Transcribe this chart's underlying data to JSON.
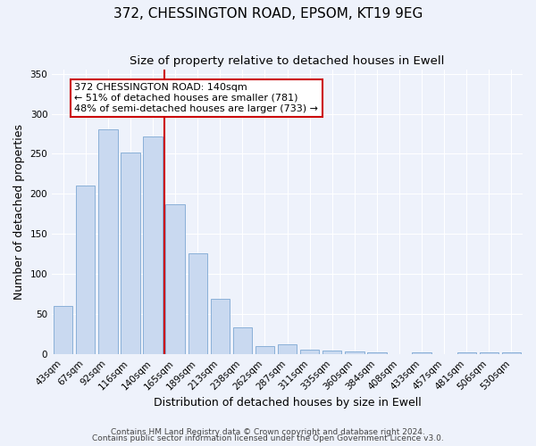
{
  "title": "372, CHESSINGTON ROAD, EPSOM, KT19 9EG",
  "subtitle": "Size of property relative to detached houses in Ewell",
  "xlabel": "Distribution of detached houses by size in Ewell",
  "ylabel": "Number of detached properties",
  "bar_labels": [
    "43sqm",
    "67sqm",
    "92sqm",
    "116sqm",
    "140sqm",
    "165sqm",
    "189sqm",
    "213sqm",
    "238sqm",
    "262sqm",
    "287sqm",
    "311sqm",
    "335sqm",
    "360sqm",
    "384sqm",
    "408sqm",
    "433sqm",
    "457sqm",
    "481sqm",
    "506sqm",
    "530sqm"
  ],
  "bar_values": [
    60,
    210,
    280,
    252,
    272,
    187,
    126,
    69,
    34,
    10,
    13,
    6,
    5,
    4,
    2,
    0,
    3,
    0,
    2,
    3,
    3
  ],
  "bar_color": "#c9d9f0",
  "bar_edge_color": "#8ab0d8",
  "ref_line_color": "#cc0000",
  "annotation_text": "372 CHESSINGTON ROAD: 140sqm\n← 51% of detached houses are smaller (781)\n48% of semi-detached houses are larger (733) →",
  "annotation_box_color": "#ffffff",
  "annotation_box_edge_color": "#cc0000",
  "ylim": [
    0,
    355
  ],
  "yticks": [
    0,
    50,
    100,
    150,
    200,
    250,
    300,
    350
  ],
  "footer_line1": "Contains HM Land Registry data © Crown copyright and database right 2024.",
  "footer_line2": "Contains public sector information licensed under the Open Government Licence v3.0.",
  "background_color": "#eef2fb",
  "plot_bg_color": "#eef2fb",
  "title_fontsize": 11,
  "subtitle_fontsize": 9.5,
  "axis_label_fontsize": 9,
  "tick_fontsize": 7.5,
  "annotation_fontsize": 8,
  "footer_fontsize": 6.5
}
